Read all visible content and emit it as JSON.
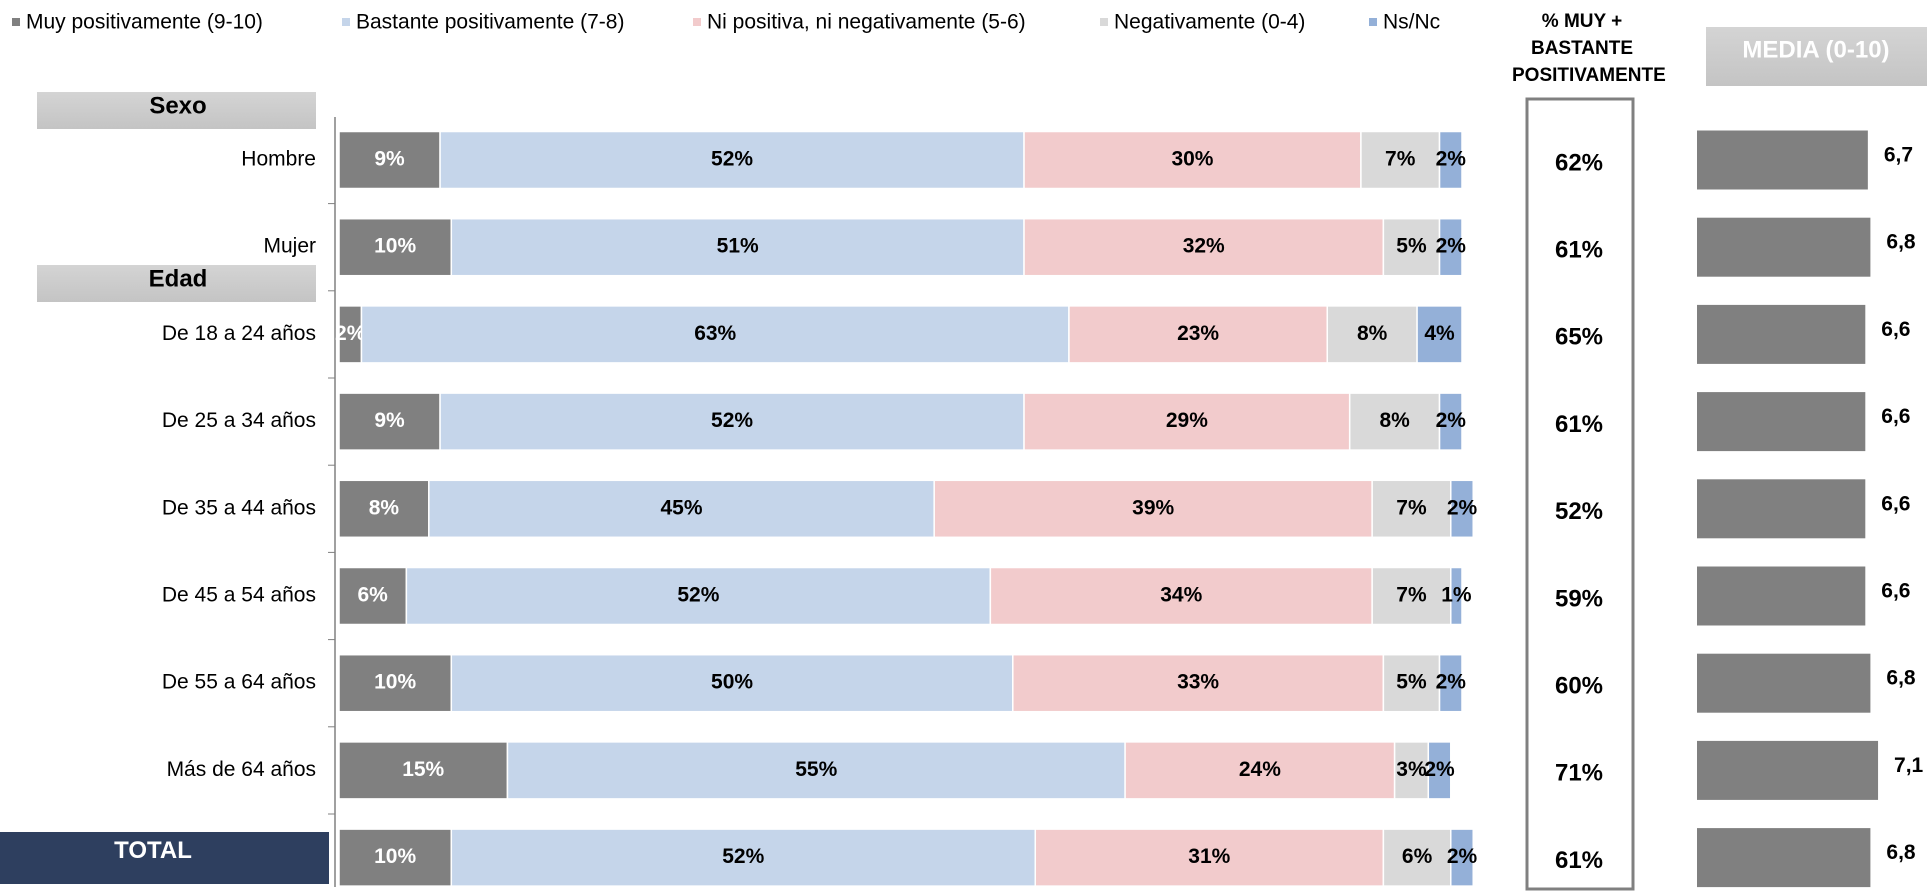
{
  "chart_data": [
    {
      "type": "stacked_bar",
      "orientation": "horizontal",
      "groups": [
        "Sexo",
        "Edad"
      ],
      "categories": [
        "Hombre",
        "Mujer",
        "De 18 a 24 años",
        "De 25 a 34 años",
        "De 35 a 44 años",
        "De 45 a 54 años",
        "De 55 a 64 años",
        "Más de 64 años",
        "TOTAL"
      ],
      "xlim": [
        0,
        100
      ],
      "series": [
        {
          "name": "Muy positivamente  (9-10)",
          "color": "#808080",
          "values": [
            9,
            10,
            2,
            9,
            8,
            6,
            10,
            15,
            10
          ],
          "value_labels": [
            "9%",
            "10%",
            "2%",
            "9%",
            "8%",
            "6%",
            "10%",
            "15%",
            "10%"
          ]
        },
        {
          "name": "Bastante positivamente (7-8)",
          "color": "#c5d5ea",
          "values": [
            52,
            51,
            63,
            52,
            45,
            52,
            50,
            55,
            52
          ],
          "value_labels": [
            "52%",
            "51%",
            "63%",
            "52%",
            "45%",
            "52%",
            "50%",
            "55%",
            "52%"
          ]
        },
        {
          "name": "Ni positiva, ni negativamente (5-6)",
          "color": "#f2cbcc",
          "values": [
            30,
            32,
            23,
            29,
            39,
            34,
            33,
            24,
            31
          ],
          "value_labels": [
            "30%",
            "32%",
            "23%",
            "29%",
            "39%",
            "34%",
            "33%",
            "24%",
            "31%"
          ]
        },
        {
          "name": "Negativamente (0-4)",
          "color": "#d9d9d9",
          "values": [
            7,
            5,
            8,
            8,
            7,
            7,
            5,
            3,
            6
          ],
          "value_labels": [
            "7%",
            "5%",
            "8%",
            "8%",
            "7%",
            "7%",
            "5%",
            "3%",
            "6%"
          ]
        },
        {
          "name": "Ns/Nc",
          "color": "#94b0d8",
          "values": [
            2,
            2,
            4,
            2,
            2,
            1,
            2,
            2,
            2
          ],
          "value_labels": [
            "2%",
            "2%",
            "4%",
            "2%",
            "2%",
            "1%",
            "2%",
            "2%",
            "2%"
          ]
        }
      ]
    },
    {
      "type": "table",
      "title": "% MUY + BASTANTE POSITIVAMENTE",
      "values": [
        62,
        61,
        65,
        61,
        52,
        59,
        60,
        71,
        61
      ],
      "value_labels": [
        "62%",
        "61%",
        "65%",
        "61%",
        "52%",
        "59%",
        "60%",
        "71%",
        "61%"
      ]
    },
    {
      "type": "bar",
      "orientation": "horizontal",
      "title": "MEDIA (0-10)",
      "color": "#808080",
      "xlim": [
        0,
        10
      ],
      "values": [
        6.7,
        6.8,
        6.6,
        6.6,
        6.6,
        6.6,
        6.8,
        7.1,
        6.8
      ],
      "value_labels": [
        "6,7",
        "6,8",
        "6,6",
        "6,6",
        "6,6",
        "6,6",
        "6,8",
        "7,1",
        "6,8"
      ]
    }
  ]
}
